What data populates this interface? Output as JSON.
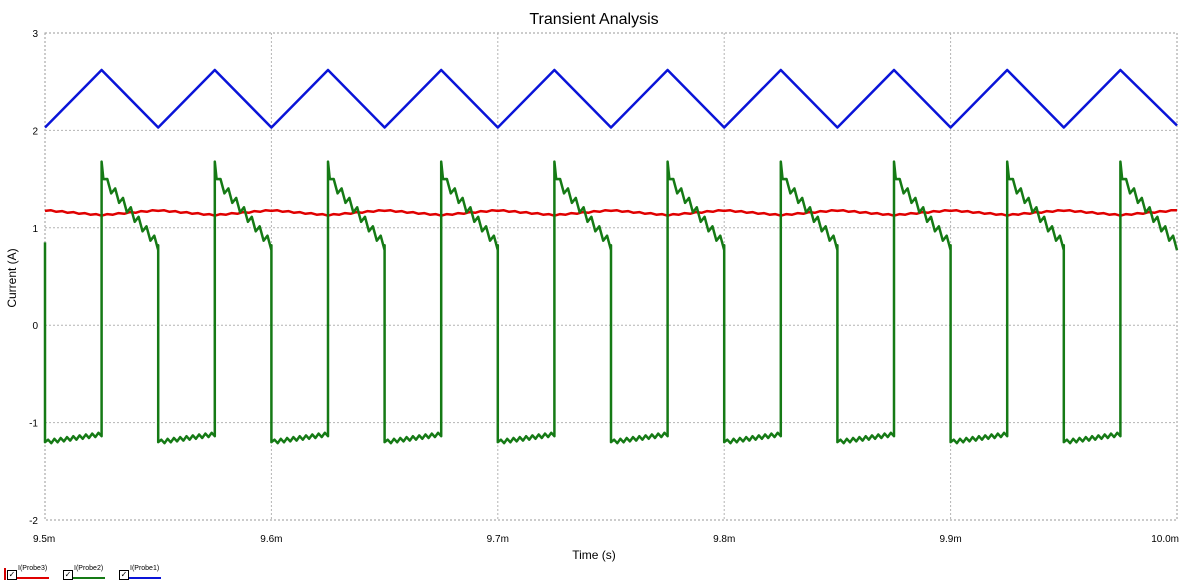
{
  "chart_data": {
    "type": "line",
    "title": "Transient Analysis",
    "xlabel": "Time (s)",
    "ylabel": "Current (A)",
    "xlim": [
      9.5,
      10.0
    ],
    "ylim": [
      -2,
      3
    ],
    "x_unit": "ms",
    "x_ticks": [
      9.5,
      9.6,
      9.7,
      9.8,
      9.9,
      10.0
    ],
    "x_tick_labels": [
      "9.5m",
      "9.6m",
      "9.7m",
      "9.8m",
      "9.9m",
      "10.0m"
    ],
    "y_ticks": [
      -2,
      -1,
      0,
      1,
      2,
      3
    ],
    "y_tick_labels": [
      "-2",
      "-1",
      "0",
      "1",
      "2",
      "3"
    ],
    "grid": true,
    "legend_position": "bottom-left",
    "series": [
      {
        "name": "I(Probe3)",
        "color": "#e00000",
        "waveform": "ripple",
        "period": 0.05,
        "x": [
          9.5,
          9.525,
          9.55,
          9.575,
          9.6,
          9.625,
          9.65,
          9.675,
          9.7,
          9.725,
          9.75,
          9.775,
          9.8,
          9.825,
          9.85,
          9.875,
          9.9,
          9.925,
          9.95,
          9.975,
          10.0
        ],
        "y": [
          1.18,
          1.13,
          1.18,
          1.13,
          1.18,
          1.13,
          1.18,
          1.13,
          1.18,
          1.13,
          1.18,
          1.13,
          1.18,
          1.13,
          1.18,
          1.13,
          1.18,
          1.13,
          1.18,
          1.13,
          1.18
        ]
      },
      {
        "name": "I(Probe2)",
        "color": "#157a15",
        "waveform": "switching",
        "period": 0.05,
        "high_start": 1.68,
        "high_end": 0.82,
        "low_start": -1.2,
        "low_end": -1.12,
        "rise_times": [
          9.525,
          9.575,
          9.625,
          9.675,
          9.725,
          9.775,
          9.825,
          9.875,
          9.925,
          9.975
        ],
        "fall_times": [
          9.55,
          9.6,
          9.65,
          9.7,
          9.75,
          9.8,
          9.85,
          9.9,
          9.95
        ]
      },
      {
        "name": "I(Probe1)",
        "color": "#0a14d8",
        "waveform": "triangle",
        "period": 0.05,
        "x": [
          9.5,
          9.525,
          9.55,
          9.575,
          9.6,
          9.625,
          9.65,
          9.675,
          9.7,
          9.725,
          9.75,
          9.775,
          9.8,
          9.825,
          9.85,
          9.875,
          9.9,
          9.925,
          9.95,
          9.975,
          10.0
        ],
        "y": [
          2.03,
          2.62,
          2.03,
          2.62,
          2.03,
          2.62,
          2.03,
          2.62,
          2.03,
          2.62,
          2.03,
          2.62,
          2.03,
          2.62,
          2.03,
          2.62,
          2.03,
          2.62,
          2.03,
          2.62,
          2.05
        ]
      }
    ]
  },
  "legend": {
    "items": [
      {
        "label": "I(Probe3)",
        "color": "#e00000",
        "checked": true
      },
      {
        "label": "I(Probe2)",
        "color": "#157a15",
        "checked": true
      },
      {
        "label": "I(Probe1)",
        "color": "#0a14d8",
        "checked": true
      }
    ]
  }
}
